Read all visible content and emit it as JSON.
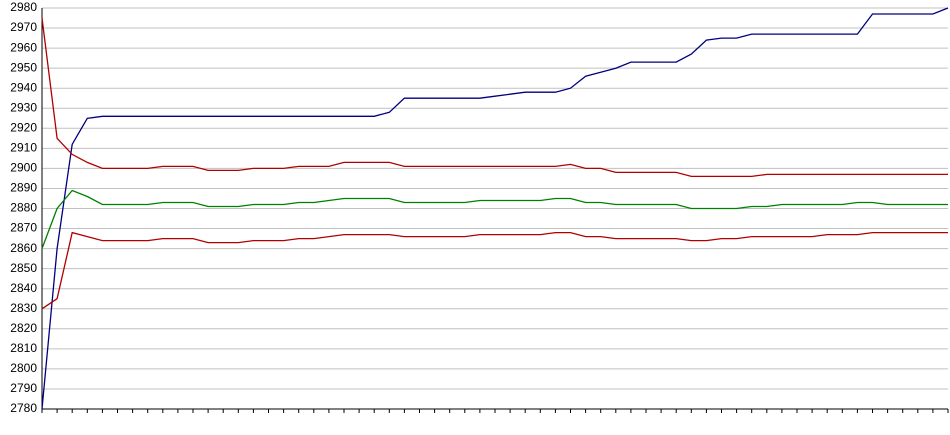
{
  "chart_data": {
    "type": "line",
    "categories": [
      null,
      null,
      null,
      null,
      null,
      null,
      null,
      null,
      null,
      null,
      null,
      null,
      null,
      null,
      null,
      null,
      null,
      null,
      null,
      null,
      null,
      null,
      null,
      null,
      null,
      null,
      null,
      null,
      null,
      null,
      null,
      null,
      null,
      null,
      null,
      null,
      null,
      null,
      null,
      null,
      null,
      null,
      null,
      null,
      null,
      null,
      null,
      null,
      null,
      null,
      null,
      null,
      null,
      null,
      null,
      null,
      null,
      null,
      null,
      null,
      null
    ],
    "series": [
      {
        "color": "#000080",
        "values": [
          2780,
          2860,
          2912,
          2925,
          2926,
          2926,
          2926,
          2926,
          2926,
          2926,
          2926,
          2926,
          2926,
          2926,
          2926,
          2926,
          2926,
          2926,
          2926,
          2926,
          2926,
          2926,
          2926,
          2928,
          2935,
          2935,
          2935,
          2935,
          2935,
          2935,
          2936,
          2937,
          2938,
          2938,
          2938,
          2940,
          2946,
          2948,
          2950,
          2953,
          2953,
          2953,
          2953,
          2957,
          2964,
          2965,
          2965,
          2967,
          2967,
          2967,
          2967,
          2967,
          2967,
          2967,
          2967,
          2977,
          2977,
          2977,
          2977,
          2977,
          2980
        ]
      },
      {
        "color": "#b00000",
        "values": [
          2975,
          2915,
          2907,
          2903,
          2900,
          2900,
          2900,
          2900,
          2901,
          2901,
          2901,
          2899,
          2899,
          2899,
          2900,
          2900,
          2900,
          2901,
          2901,
          2901,
          2903,
          2903,
          2903,
          2903,
          2901,
          2901,
          2901,
          2901,
          2901,
          2901,
          2901,
          2901,
          2901,
          2901,
          2901,
          2902,
          2900,
          2900,
          2898,
          2898,
          2898,
          2898,
          2898,
          2896,
          2896,
          2896,
          2896,
          2896,
          2897,
          2897,
          2897,
          2897,
          2897,
          2897,
          2897,
          2897,
          2897,
          2897,
          2897,
          2897,
          2897
        ]
      },
      {
        "color": "#008000",
        "values": [
          2860,
          2880,
          2889,
          2886,
          2882,
          2882,
          2882,
          2882,
          2883,
          2883,
          2883,
          2881,
          2881,
          2881,
          2882,
          2882,
          2882,
          2883,
          2883,
          2884,
          2885,
          2885,
          2885,
          2885,
          2883,
          2883,
          2883,
          2883,
          2883,
          2884,
          2884,
          2884,
          2884,
          2884,
          2885,
          2885,
          2883,
          2883,
          2882,
          2882,
          2882,
          2882,
          2882,
          2880,
          2880,
          2880,
          2880,
          2881,
          2881,
          2882,
          2882,
          2882,
          2882,
          2882,
          2883,
          2883,
          2882,
          2882,
          2882,
          2882,
          2882
        ]
      },
      {
        "color": "#b00000",
        "values": [
          2830,
          2835,
          2868,
          2866,
          2864,
          2864,
          2864,
          2864,
          2865,
          2865,
          2865,
          2863,
          2863,
          2863,
          2864,
          2864,
          2864,
          2865,
          2865,
          2866,
          2867,
          2867,
          2867,
          2867,
          2866,
          2866,
          2866,
          2866,
          2866,
          2867,
          2867,
          2867,
          2867,
          2867,
          2868,
          2868,
          2866,
          2866,
          2865,
          2865,
          2865,
          2865,
          2865,
          2864,
          2864,
          2865,
          2865,
          2866,
          2866,
          2866,
          2866,
          2866,
          2867,
          2867,
          2867,
          2868,
          2868,
          2868,
          2868,
          2868,
          2868
        ]
      }
    ],
    "ylim": [
      2780,
      2980
    ],
    "yticks": [
      2780,
      2790,
      2800,
      2810,
      2820,
      2830,
      2840,
      2850,
      2860,
      2870,
      2880,
      2890,
      2900,
      2910,
      2920,
      2930,
      2940,
      2950,
      2960,
      2970,
      2980
    ],
    "grid": true
  }
}
